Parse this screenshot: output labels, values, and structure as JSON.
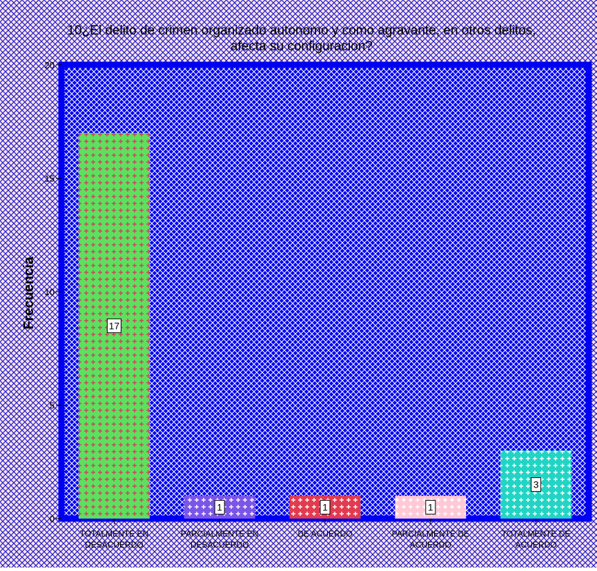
{
  "chart_data": {
    "type": "bar",
    "title": "10¿El delito de crimen organizado autonomo y como agravante, en otros delitos, afecta su configuracion?",
    "title_lines": [
      "10¿El delito de crimen organizado autonomo y como agravante, en otros delitos,",
      "afecta su configuracion?"
    ],
    "xlabel": "",
    "ylabel": "Frecuencia",
    "ylim": [
      0,
      20
    ],
    "yticks": [
      0,
      5,
      10,
      15,
      20
    ],
    "categories": [
      [
        "TOTALMENTE EN",
        "DESACUERDO"
      ],
      [
        "PARCIALMENTE EN",
        "DESACUERDO"
      ],
      [
        "DE ACUERDO"
      ],
      [
        "PARCIALMENTE DE",
        "ACUERDO"
      ],
      [
        "TOTALMENTE DE",
        "ACUERDO"
      ]
    ],
    "values": [
      17,
      1,
      1,
      1,
      3
    ],
    "data_labels": [
      "17",
      "1",
      "1",
      "1",
      "3"
    ],
    "grid": false,
    "colors": {
      "page_background": "#ffe4e8",
      "page_hatch": "#2222cc",
      "plot_background": "#0000f0",
      "plot_hatch": "#ffffff",
      "bars": [
        "#5ee05e",
        "#7a55e8",
        "#e23a4e",
        "#ffc8d6",
        "#22d4c4"
      ],
      "bar_hatch": [
        "#d04060",
        "#ffffff",
        "#ffffff",
        "#ffffff",
        "#ffffff"
      ]
    }
  }
}
